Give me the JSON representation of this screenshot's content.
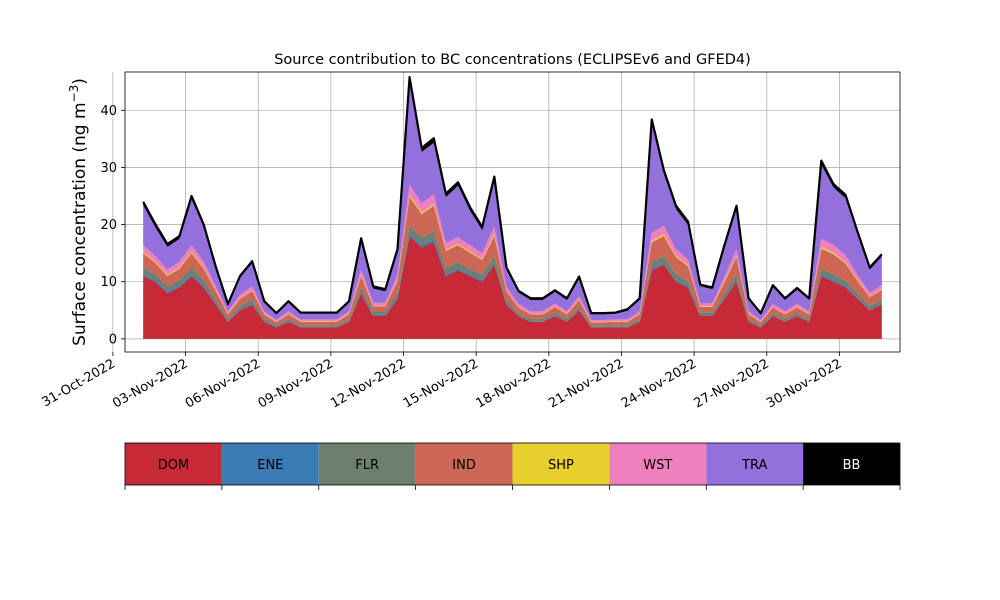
{
  "chart_data": {
    "type": "area",
    "stacked": true,
    "title": "Source contribution to BC concentrations (ECLIPSEv6 and GFED4)",
    "ylabel": "Surface concentration (ng m",
    "ylabel_exponent": "−3",
    "ylabel_close": ")",
    "xlabel": "",
    "ylim": [
      -2.3,
      46.7
    ],
    "yticks": [
      0,
      10,
      20,
      30,
      40
    ],
    "xlim": [
      "2022-10-31T12:00",
      "2022-12-02T12:00"
    ],
    "xtick_labels": [
      "31-Oct-2022",
      "03-Nov-2022",
      "06-Nov-2022",
      "09-Nov-2022",
      "12-Nov-2022",
      "15-Nov-2022",
      "18-Nov-2022",
      "21-Nov-2022",
      "24-Nov-2022",
      "27-Nov-2022",
      "30-Nov-2022"
    ],
    "xtick_dates": [
      "2022-10-31",
      "2022-11-03",
      "2022-11-06",
      "2022-11-09",
      "2022-11-12",
      "2022-11-15",
      "2022-11-18",
      "2022-11-21",
      "2022-11-24",
      "2022-11-27",
      "2022-11-30"
    ],
    "grid": true,
    "legend_placement": "bottom (color bar)",
    "x": [
      "2022-11-01T06:00",
      "2022-11-01T18:00",
      "2022-11-02T06:00",
      "2022-11-02T18:00",
      "2022-11-03T06:00",
      "2022-11-03T18:00",
      "2022-11-04T06:00",
      "2022-11-04T18:00",
      "2022-11-05T06:00",
      "2022-11-05T18:00",
      "2022-11-06T06:00",
      "2022-11-06T18:00",
      "2022-11-07T06:00",
      "2022-11-07T18:00",
      "2022-11-08T06:00",
      "2022-11-08T18:00",
      "2022-11-09T06:00",
      "2022-11-09T18:00",
      "2022-11-10T06:00",
      "2022-11-10T18:00",
      "2022-11-11T06:00",
      "2022-11-11T18:00",
      "2022-11-12T06:00",
      "2022-11-12T18:00",
      "2022-11-13T06:00",
      "2022-11-13T18:00",
      "2022-11-14T06:00",
      "2022-11-14T18:00",
      "2022-11-15T06:00",
      "2022-11-15T18:00",
      "2022-11-16T06:00",
      "2022-11-16T18:00",
      "2022-11-17T06:00",
      "2022-11-17T18:00",
      "2022-11-18T06:00",
      "2022-11-18T18:00",
      "2022-11-19T06:00",
      "2022-11-19T18:00",
      "2022-11-20T06:00",
      "2022-11-20T18:00",
      "2022-11-21T06:00",
      "2022-11-21T18:00",
      "2022-11-22T06:00",
      "2022-11-22T18:00",
      "2022-11-23T06:00",
      "2022-11-23T18:00",
      "2022-11-24T06:00",
      "2022-11-24T18:00",
      "2022-11-25T06:00",
      "2022-11-25T18:00",
      "2022-11-26T06:00",
      "2022-11-26T18:00",
      "2022-11-27T06:00",
      "2022-11-27T18:00",
      "2022-11-28T06:00",
      "2022-11-28T18:00",
      "2022-11-29T06:00",
      "2022-11-29T18:00",
      "2022-11-30T06:00",
      "2022-11-30T18:00",
      "2022-12-01T06:00",
      "2022-12-01T18:00"
    ],
    "series": [
      {
        "name": "DOM",
        "color": "#c62a36",
        "values": [
          11,
          10,
          8,
          9,
          11,
          9,
          6,
          3,
          5,
          6,
          3,
          2,
          3,
          2,
          2,
          2,
          2,
          3,
          8,
          4,
          4,
          7,
          18,
          16,
          17,
          11,
          12,
          11,
          10,
          13,
          6,
          4,
          3,
          3,
          4,
          3,
          5,
          2,
          2,
          2,
          2,
          3,
          12,
          13,
          10,
          9,
          4,
          4,
          7,
          10,
          3,
          2,
          4,
          3,
          4,
          3,
          11,
          10,
          9,
          7,
          5,
          6
        ]
      },
      {
        "name": "ENE",
        "color": "#3a7ab5",
        "values": [
          0.3,
          0.3,
          0.3,
          0.3,
          0.3,
          0.3,
          0.2,
          0.1,
          0.2,
          0.2,
          0.1,
          0.1,
          0.1,
          0.1,
          0.1,
          0.1,
          0.1,
          0.1,
          0.2,
          0.2,
          0.2,
          0.3,
          0.4,
          0.4,
          0.4,
          0.3,
          0.3,
          0.3,
          0.3,
          0.3,
          0.2,
          0.1,
          0.1,
          0.1,
          0.1,
          0.1,
          0.1,
          0.1,
          0.1,
          0.1,
          0.1,
          0.1,
          0.3,
          0.3,
          0.3,
          0.3,
          0.1,
          0.1,
          0.2,
          0.3,
          0.1,
          0.1,
          0.1,
          0.1,
          0.1,
          0.1,
          0.3,
          0.3,
          0.3,
          0.2,
          0.2,
          0.2
        ]
      },
      {
        "name": "FLR",
        "color": "#6d8070",
        "values": [
          1.2,
          1,
          0.9,
          1,
          1.2,
          1,
          0.7,
          0.4,
          0.6,
          0.7,
          0.4,
          0.3,
          0.4,
          0.3,
          0.3,
          0.3,
          0.3,
          0.4,
          0.8,
          0.5,
          0.5,
          0.8,
          1.5,
          1.4,
          1.4,
          1.1,
          1.1,
          1,
          1,
          1.2,
          0.6,
          0.4,
          0.4,
          0.4,
          0.5,
          0.4,
          0.5,
          0.3,
          0.3,
          0.3,
          0.3,
          0.4,
          1.1,
          1.2,
          1,
          0.9,
          0.5,
          0.5,
          0.7,
          1,
          0.4,
          0.3,
          0.4,
          0.4,
          0.4,
          0.4,
          1,
          1,
          0.9,
          0.7,
          0.6,
          0.6
        ]
      },
      {
        "name": "IND",
        "color": "#cc6655",
        "values": [
          2.5,
          2,
          1.8,
          2,
          2.5,
          2,
          1.5,
          0.8,
          1.2,
          1.5,
          0.8,
          0.5,
          0.8,
          0.6,
          0.6,
          0.6,
          0.6,
          0.8,
          2,
          1,
          1,
          2,
          5,
          4,
          4.5,
          3,
          3,
          2.8,
          2.5,
          3.5,
          1.5,
          1,
          0.8,
          0.8,
          1,
          0.8,
          1.2,
          0.5,
          0.5,
          0.6,
          0.6,
          0.8,
          3.5,
          3.5,
          3,
          2.5,
          1,
          1,
          2,
          3,
          0.8,
          0.5,
          1,
          0.8,
          1,
          0.8,
          3.5,
          3.5,
          3,
          2.2,
          1.5,
          1.8
        ]
      },
      {
        "name": "SHP",
        "color": "#e8cf2e",
        "values": [
          0.2,
          0.2,
          0.2,
          0.2,
          0.2,
          0.2,
          0.1,
          0.1,
          0.1,
          0.1,
          0.1,
          0.1,
          0.1,
          0.1,
          0.1,
          0.1,
          0.1,
          0.1,
          0.2,
          0.1,
          0.1,
          0.2,
          0.3,
          0.3,
          0.3,
          0.2,
          0.2,
          0.2,
          0.2,
          0.3,
          0.1,
          0.1,
          0.1,
          0.1,
          0.1,
          0.1,
          0.1,
          0.1,
          0.1,
          0.1,
          0.1,
          0.1,
          0.3,
          0.3,
          0.2,
          0.2,
          0.1,
          0.1,
          0.2,
          0.2,
          0.1,
          0.1,
          0.1,
          0.1,
          0.1,
          0.1,
          0.3,
          0.3,
          0.2,
          0.2,
          0.1,
          0.1
        ]
      },
      {
        "name": "WST",
        "color": "#f07fbe",
        "values": [
          1.2,
          1,
          0.9,
          1,
          1.2,
          1,
          0.7,
          0.4,
          0.6,
          0.7,
          0.4,
          0.3,
          0.4,
          0.3,
          0.3,
          0.3,
          0.3,
          0.4,
          0.9,
          0.5,
          0.5,
          0.9,
          1.8,
          1.6,
          1.7,
          1.2,
          1.2,
          1.1,
          1,
          1.4,
          0.7,
          0.5,
          0.4,
          0.4,
          0.5,
          0.4,
          0.6,
          0.3,
          0.3,
          0.3,
          0.3,
          0.4,
          1.4,
          1.5,
          1.2,
          1,
          0.5,
          0.5,
          0.8,
          1.2,
          0.4,
          0.3,
          0.5,
          0.4,
          0.5,
          0.4,
          1.4,
          1.4,
          1.2,
          0.9,
          0.7,
          0.7
        ]
      },
      {
        "name": "TRA",
        "color": "#9370db",
        "values": [
          7,
          5,
          4,
          4,
          8,
          6,
          3,
          1,
          3,
          4,
          1.5,
          1,
          1.5,
          1,
          1,
          1,
          1,
          1.5,
          5,
          2.5,
          2,
          4,
          18,
          9,
          9,
          8,
          9,
          6,
          4,
          8,
          3,
          2,
          2,
          2,
          2,
          2,
          3,
          1,
          1,
          1,
          1.5,
          2,
          19,
          9,
          7,
          6,
          3,
          2.5,
          5,
          7,
          2,
          1,
          3,
          2,
          2.5,
          2,
          13,
          10,
          10,
          7,
          4,
          5
        ]
      },
      {
        "name": "BB",
        "color": "#000000",
        "values": [
          0.6,
          0.6,
          0.5,
          0.5,
          0.6,
          0.5,
          0.4,
          0.3,
          0.3,
          0.4,
          0.3,
          0.2,
          0.3,
          0.2,
          0.2,
          0.2,
          0.2,
          0.3,
          0.5,
          0.4,
          0.4,
          0.5,
          0.8,
          0.7,
          0.8,
          0.6,
          0.6,
          0.6,
          0.6,
          0.7,
          0.4,
          0.3,
          0.3,
          0.3,
          0.3,
          0.3,
          0.4,
          0.2,
          0.2,
          0.2,
          0.3,
          0.3,
          0.8,
          0.7,
          0.6,
          0.6,
          0.3,
          0.3,
          0.5,
          0.6,
          0.3,
          0.2,
          0.3,
          0.3,
          0.3,
          0.3,
          0.7,
          0.6,
          0.6,
          0.5,
          0.4,
          0.4
        ]
      }
    ]
  }
}
